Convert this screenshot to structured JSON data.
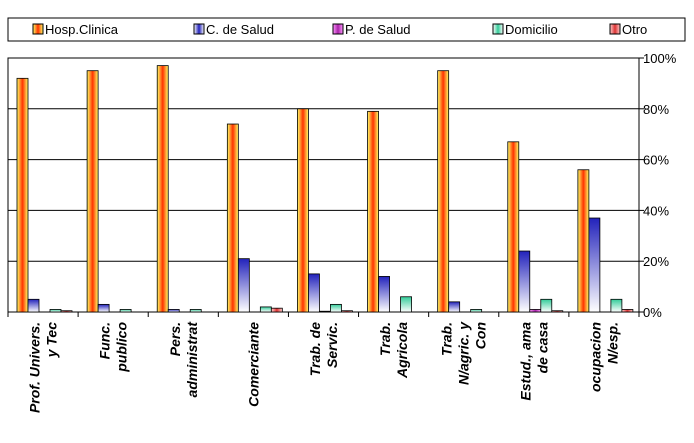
{
  "chart_data": {
    "type": "bar",
    "title": "",
    "xlabel": "",
    "ylabel": "",
    "ylim": [
      0,
      100
    ],
    "y_ticks": [
      "0%",
      "20%",
      "40%",
      "60%",
      "80%",
      "100%"
    ],
    "y_tick_values": [
      0,
      20,
      40,
      60,
      80,
      100
    ],
    "y_axis_side": "right",
    "grid": true,
    "legend_position": "top",
    "categories": [
      [
        "Prof. Univers.",
        "y Tec"
      ],
      [
        "Func.",
        "publico"
      ],
      [
        "Pers.",
        "administrat"
      ],
      [
        "Comerciante"
      ],
      [
        "Trab. de",
        "Servic."
      ],
      [
        "Trab.",
        "Agricola"
      ],
      [
        "Trab.",
        "N/agric. y",
        "Con"
      ],
      [
        "Estud., ama",
        "de casa"
      ],
      [
        "ocupacion",
        "N/esp."
      ]
    ],
    "series": [
      {
        "name": "Hosp.Clinica",
        "color": "#ff6600",
        "gradient": [
          "#ffff66",
          "#ff3300"
        ],
        "values": [
          92,
          95,
          97,
          74,
          80,
          79,
          95,
          67,
          56
        ]
      },
      {
        "name": "C. de Salud",
        "color": "#3333cc",
        "gradient": [
          "#ffffff",
          "#2222bb"
        ],
        "values": [
          5,
          3,
          1,
          21,
          15,
          14,
          4,
          24,
          37
        ]
      },
      {
        "name": "P. de Salud",
        "color": "#cc33cc",
        "gradient": [
          "#ff99ff",
          "#aa22aa"
        ],
        "values": [
          0,
          0,
          0,
          0,
          0.3,
          0,
          0,
          1,
          0
        ]
      },
      {
        "name": "Domicilio",
        "color": "#99ffcc",
        "gradient": [
          "#ffffff",
          "#33cc99"
        ],
        "values": [
          1,
          1,
          1,
          2,
          3,
          6,
          1,
          5,
          5
        ]
      },
      {
        "name": "Otro",
        "color": "#ff6666",
        "gradient": [
          "#ffcccc",
          "#dd3333"
        ],
        "values": [
          0.5,
          0,
          0,
          1.5,
          0.5,
          0,
          0,
          0.5,
          1
        ]
      }
    ]
  }
}
